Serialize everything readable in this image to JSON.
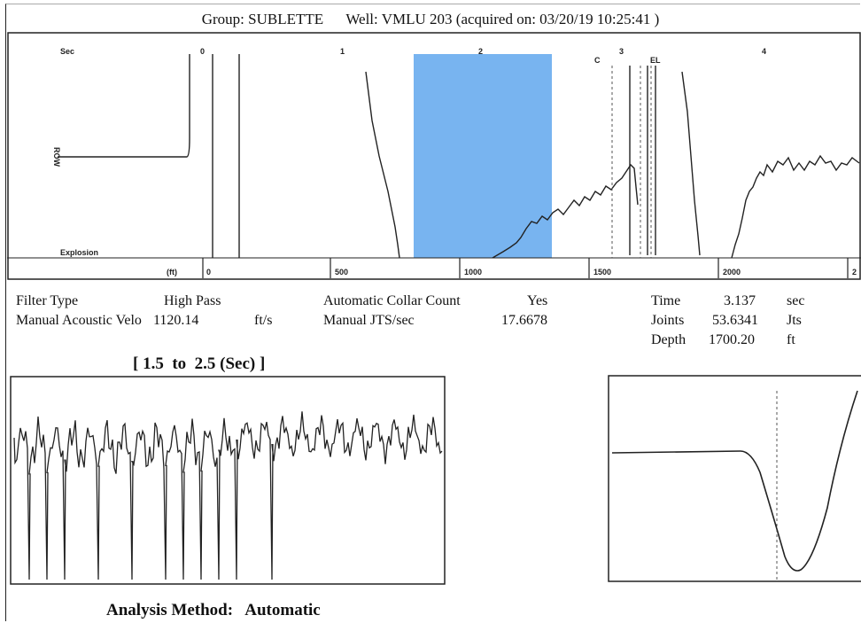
{
  "header": {
    "group_label": "Group:",
    "group": "SUBLETTE",
    "well_label": "Well:",
    "well": "VMLU 203",
    "acquired": "(acquired on: 03/20/19 10:25:41 )"
  },
  "main_plot": {
    "sec_label": "Sec",
    "time_ticks": [
      "0",
      "1",
      "2",
      "3",
      "4"
    ],
    "ft_label": "(ft)",
    "depth_ticks": [
      "0",
      "500",
      "1000",
      "1500",
      "2000",
      "2"
    ],
    "row_label": "ROW",
    "explosion_label": "Explosion",
    "marker_c": "C",
    "marker_el": "EL",
    "selection_color": "#78b4f0"
  },
  "params": {
    "filter_type_label": "Filter Type",
    "filter_type_value": "High Pass",
    "acoustic_velo_label": "Manual Acoustic Velo",
    "acoustic_velo_value": "1120.14",
    "acoustic_velo_unit": "ft/s",
    "collar_count_label": "Automatic Collar Count",
    "collar_count_value": "Yes",
    "jts_sec_label": "Manual JTS/sec",
    "jts_sec_value": "17.6678",
    "time_label": "Time",
    "time_value": "3.137",
    "time_unit": "sec",
    "joints_label": "Joints",
    "joints_value": "53.6341",
    "joints_unit": "Jts",
    "depth_label": "Depth",
    "depth_value": "1700.20",
    "depth_unit": "ft"
  },
  "zoom": {
    "title": "[ 1.5  to  2.5 (Sec) ]"
  },
  "analysis": {
    "label": "Analysis Method:",
    "value": "Automatic"
  }
}
